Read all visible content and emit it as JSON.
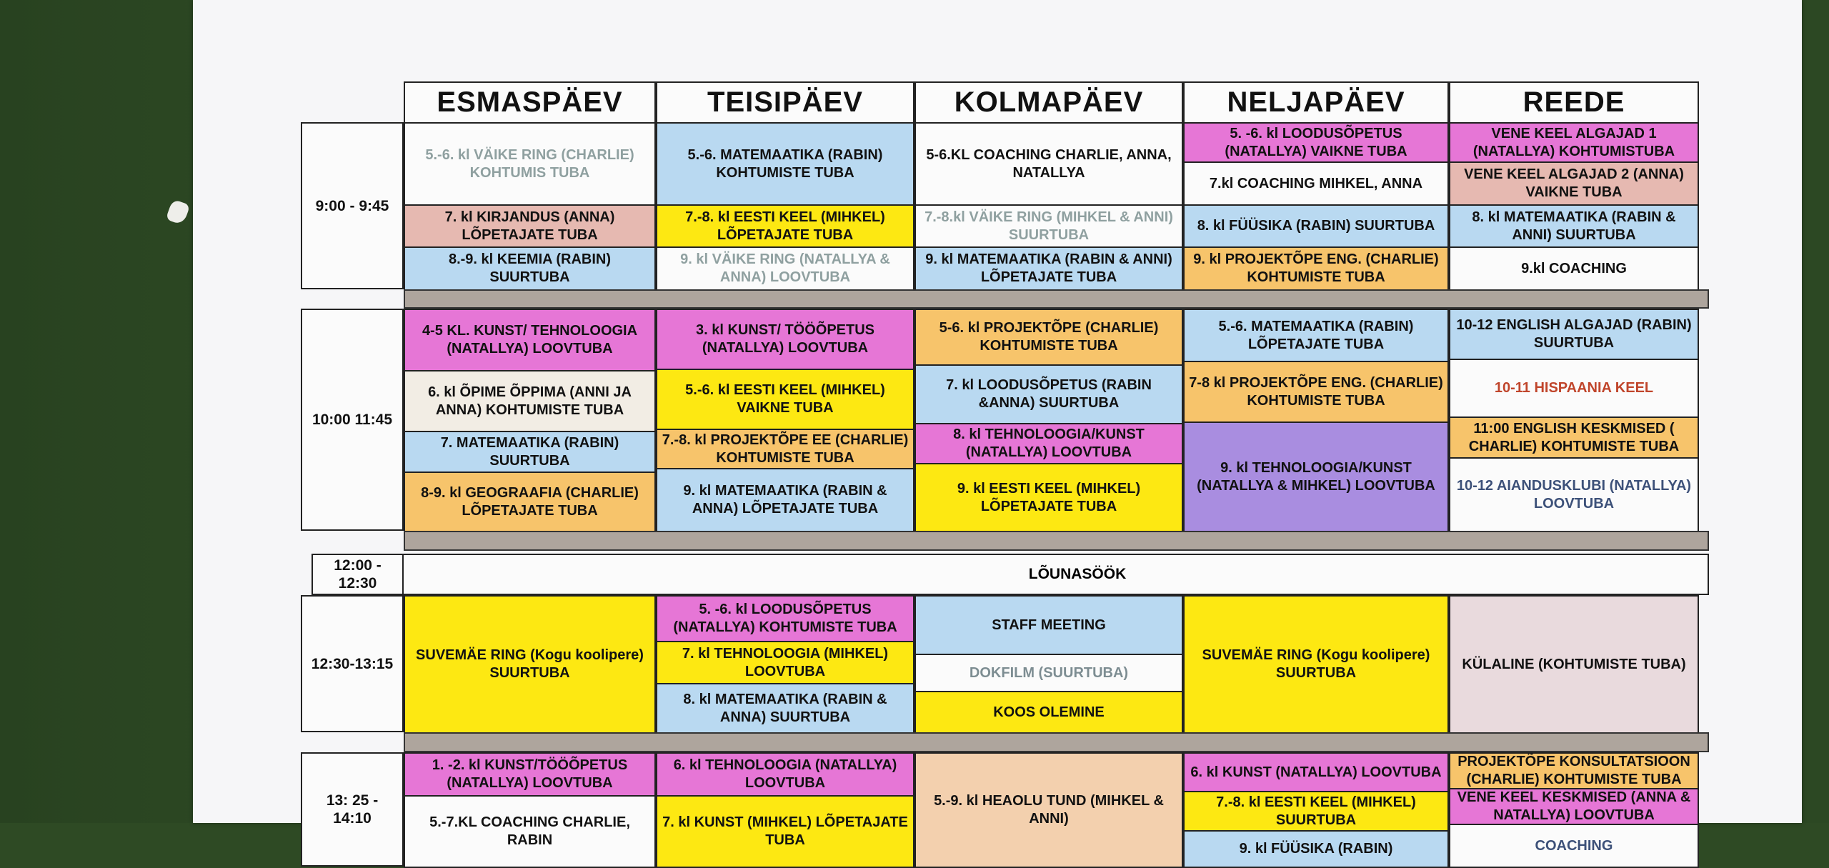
{
  "days": [
    "ESMASPÄEV",
    "TEISIPÄEV",
    "KOLMAPÄEV",
    "NELJAPÄEV",
    "REEDE"
  ],
  "lunch": {
    "time": "12:00 - 12:30",
    "label": "LÕUNASÖÖK"
  },
  "colors": {
    "background": "#2e4a24",
    "paper": "#f6f6f8",
    "gap": "#aea59d",
    "pink": "#e676d6",
    "blue": "#b9d9f1",
    "yellow": "#fde812",
    "orange": "#f7c46b",
    "salmon": "#e6b9b1",
    "purple": "#a98de0",
    "peach": "#f3d0ae",
    "cream": "#f2ede4",
    "mauve": "#e9dadd",
    "white": "#fbfbfb"
  },
  "blocks": [
    {
      "time": "9:00 - 9:45",
      "days": [
        [
          {
            "text": "5.-6. kl VÄIKE RING (CHARLIE) KOHTUMIS TUBA",
            "bg": "#fbfbfb",
            "fg": "#8fa0a0"
          },
          {
            "text": "7. kl KIRJANDUS (ANNA) LÕPETAJATE TUBA",
            "bg": "#e6b9b1"
          },
          {
            "text": "8.-9. kl KEEMIA (RABIN) SUURTUBA",
            "bg": "#b9d9f1"
          }
        ],
        [
          {
            "text": "5.-6. MATEMAATIKA (RABIN) KOHTUMISTE TUBA",
            "bg": "#b9d9f1"
          },
          {
            "text": "7.-8. kl EESTI KEEL (MIHKEL) LÕPETAJATE TUBA",
            "bg": "#fde812"
          },
          {
            "text": "9. kl VÄIKE RING (NATALLYA & ANNA) LOOVTUBA",
            "bg": "#fbfbfb",
            "fg": "#8fa0a0"
          }
        ],
        [
          {
            "text": "5-6.KL COACHING CHARLIE, ANNA, NATALLYA",
            "bg": "#fbfbfb"
          },
          {
            "text": "7.-8.kl VÄIKE RING (MIHKEL & ANNI) SUURTUBA",
            "bg": "#fbfbfb",
            "fg": "#8fa0a0"
          },
          {
            "text": "9. kl MATEMAATIKA (RABIN & ANNI) LÕPETAJATE TUBA",
            "bg": "#b9d9f1"
          }
        ],
        [
          {
            "text": "5. -6. kl LOODUSÕPETUS (NATALLYA) VAIKNE TUBA",
            "bg": "#e676d6"
          },
          {
            "text": "7.kl COACHING MIHKEL, ANNA",
            "bg": "#fbfbfb"
          },
          {
            "text": "8. kl FÜÜSIKA (RABIN) SUURTUBA",
            "bg": "#b9d9f1"
          },
          {
            "text": "9. kl PROJEKTÕPE ENG. (CHARLIE) KOHTUMISTE TUBA",
            "bg": "#f7c46b"
          }
        ],
        [
          {
            "text": "VENE KEEL ALGAJAD 1 (NATALLYA) KOHTUMISTUBA",
            "bg": "#e676d6"
          },
          {
            "text": "VENE KEEL ALGAJAD 2 (ANNA) VAIKNE TUBA",
            "bg": "#e6b9b1"
          },
          {
            "text": "8. kl MATEMAATIKA (RABIN & ANNI) SUURTUBA",
            "bg": "#b9d9f1"
          },
          {
            "text": "9.kl COACHING",
            "bg": "#fbfbfb"
          }
        ]
      ]
    },
    {
      "time": "10:00 11:45",
      "days": [
        [
          {
            "text": "4-5 KL. KUNST/ TEHNOLOOGIA (NATALLYA) LOOVTUBA",
            "bg": "#e676d6"
          },
          {
            "text": "6. kl ÕPIME ÕPPIMA (ANNI JA ANNA) KOHTUMISTE TUBA",
            "bg": "#f2ede4"
          },
          {
            "text": "7. MATEMAATIKA (RABIN) SUURTUBA",
            "bg": "#b9d9f1"
          },
          {
            "text": "8-9. kl GEOGRAAFIA (CHARLIE) LÕPETAJATE TUBA",
            "bg": "#f7c46b"
          }
        ],
        [
          {
            "text": "3. kl KUNST/ TÖÖÕPETUS (NATALLYA) LOOVTUBA",
            "bg": "#e676d6"
          },
          {
            "text": "5.-6. kl EESTI KEEL (MIHKEL) VAIKNE TUBA",
            "bg": "#fde812"
          },
          {
            "text": "7.-8. kl PROJEKTÕPE EE (CHARLIE) KOHTUMISTE TUBA",
            "bg": "#f7c46b"
          },
          {
            "text": "9. kl MATEMAATIKA (RABIN & ANNA) LÕPETAJATE TUBA",
            "bg": "#b9d9f1"
          }
        ],
        [
          {
            "text": "5-6. kl PROJEKTÕPE (CHARLIE) KOHTUMISTE TUBA",
            "bg": "#f7c46b"
          },
          {
            "text": "7. kl LOODUSÕPETUS (RABIN &ANNA) SUURTUBA",
            "bg": "#b9d9f1"
          },
          {
            "text": "8. kl TEHNOLOOGIA/KUNST (NATALLYA) LOOVTUBA",
            "bg": "#e676d6"
          },
          {
            "text": "9. kl EESTI KEEL (MIHKEL) LÕPETAJATE TUBA",
            "bg": "#fde812"
          }
        ],
        [
          {
            "text": "5.-6. MATEMAATIKA (RABIN) LÕPETAJATE TUBA",
            "bg": "#b9d9f1"
          },
          {
            "text": "7-8 kl PROJEKTÕPE ENG. (CHARLIE) KOHTUMISTE TUBA",
            "bg": "#f7c46b"
          },
          {
            "text": "9. kl TEHNOLOOGIA/KUNST (NATALLYA & MIHKEL) LOOVTUBA",
            "bg": "#a98de0"
          }
        ],
        [
          {
            "text": "10-12 ENGLISH ALGAJAD (RABIN) SUURTUBA",
            "bg": "#b9d9f1"
          },
          {
            "text": "10-11 HISPAANIA KEEL",
            "bg": "#fbfbfb",
            "fg": "#c0452b"
          },
          {
            "text": "11:00 ENGLISH KESKMISED ( CHARLIE) KOHTUMISTE TUBA",
            "bg": "#f7c46b"
          },
          {
            "text": "10-12 AIANDUSKLUBI (NATALLYA) LOOVTUBA",
            "bg": "#fbfbfb",
            "fg": "#3d5179"
          }
        ]
      ]
    },
    {
      "time": "12:30-13:15",
      "days": [
        [
          {
            "text": "SUVEMÄE RING (Kogu koolipere) SUURTUBA",
            "bg": "#fde812"
          }
        ],
        [
          {
            "text": "5. -6. kl LOODUSÕPETUS (NATALLYA) KOHTUMISTE TUBA",
            "bg": "#e676d6"
          },
          {
            "text": "7. kl TEHNOLOOGIA (MIHKEL) LOOVTUBA",
            "bg": "#fde812"
          },
          {
            "text": "8. kl MATEMAATIKA (RABIN & ANNA) SUURTUBA",
            "bg": "#b9d9f1"
          }
        ],
        [
          {
            "text": "STAFF MEETING",
            "bg": "#b9d9f1"
          },
          {
            "text": "DOKFILM (SUURTUBA)",
            "bg": "#fbfbfb",
            "fg": "#7d8d92"
          },
          {
            "text": "KOOS OLEMINE",
            "bg": "#fde812"
          }
        ],
        [
          {
            "text": "SUVEMÄE RING (Kogu koolipere) SUURTUBA",
            "bg": "#fde812"
          }
        ],
        [
          {
            "text": "KÜLALINE (KOHTUMISTE TUBA)",
            "bg": "#e9dadd"
          }
        ]
      ]
    },
    {
      "time": "13: 25 - 14:10",
      "days": [
        [
          {
            "text": "1. -2. kl KUNST/TÖÖÕPETUS (NATALLYA) LOOVTUBA",
            "bg": "#e676d6"
          },
          {
            "text": "5.-7.KL COACHING CHARLIE, RABIN",
            "bg": "#fbfbfb"
          }
        ],
        [
          {
            "text": "6. kl TEHNOLOOGIA (NATALLYA) LOOVTUBA",
            "bg": "#e676d6"
          },
          {
            "text": "7. kl KUNST (MIHKEL) LÕPETAJATE TUBA",
            "bg": "#fde812"
          }
        ],
        [
          {
            "text": "5.-9. kl HEAOLU TUND (MIHKEL & ANNI)",
            "bg": "#f3d0ae"
          }
        ],
        [
          {
            "text": "6. kl KUNST (NATALLYA) LOOVTUBA",
            "bg": "#e676d6"
          },
          {
            "text": "7.-8. kl EESTI KEEL (MIHKEL) SUURTUBA",
            "bg": "#fde812"
          },
          {
            "text": "9. kl FÜÜSIKA (RABIN)",
            "bg": "#b9d9f1"
          }
        ],
        [
          {
            "text": "PROJEKTÕPE KONSULTATSIOON (CHARLIE) KOHTUMISTE TUBA",
            "bg": "#f7c46b"
          },
          {
            "text": "VENE KEEL KESKMISED (ANNA & NATALLYA) LOOVTUBA",
            "bg": "#e676d6"
          },
          {
            "text": "COACHING",
            "bg": "#fbfbfb",
            "fg": "#3d5179"
          }
        ]
      ]
    }
  ]
}
